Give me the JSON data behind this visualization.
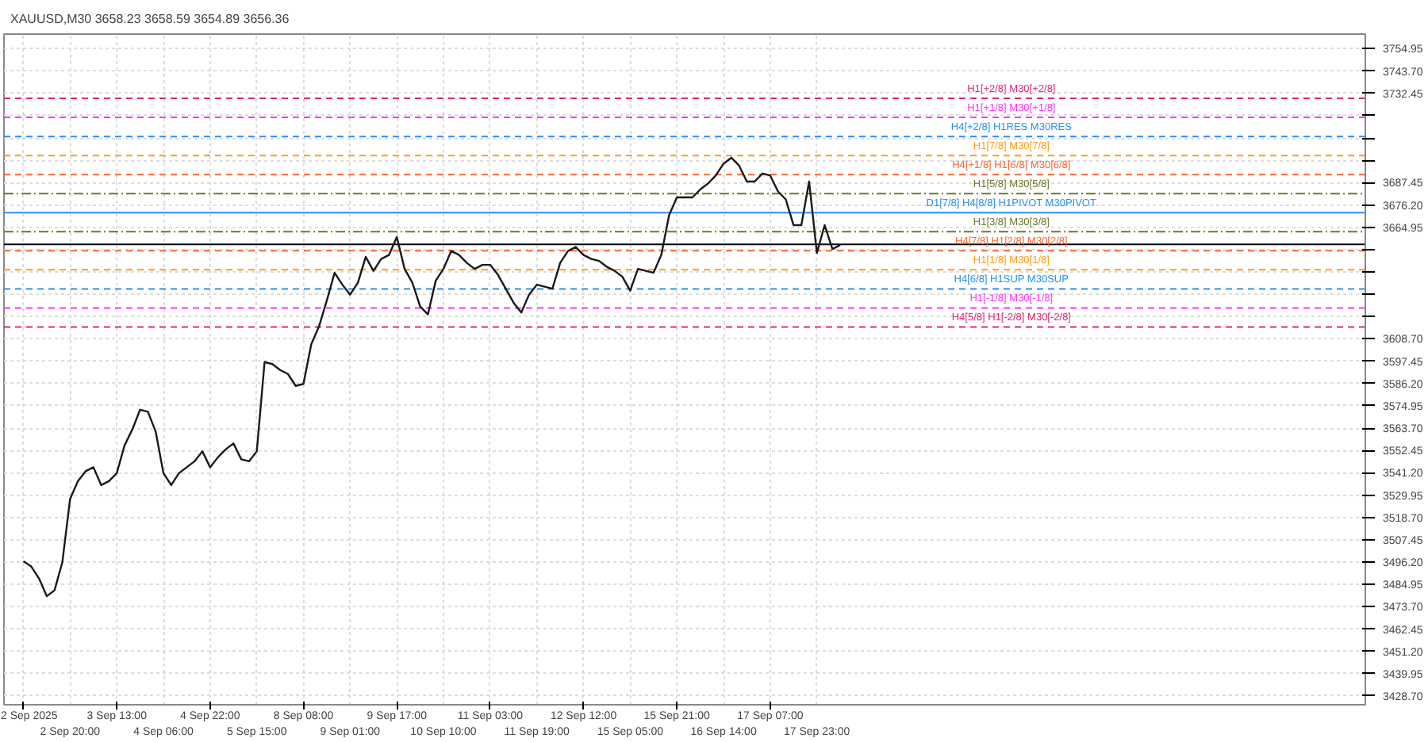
{
  "chart_data": {
    "type": "line",
    "title": "XAUUSD,M30  3658.23 3658.59 3654.89 3656.36",
    "categories": [
      "2 Sep 2025",
      null,
      null,
      null,
      null,
      null,
      "2 Sep 20:00",
      null,
      null,
      null,
      null,
      null,
      "3 Sep 13:00",
      null,
      null,
      null,
      null,
      null,
      "4 Sep 06:00",
      null,
      null,
      null,
      null,
      null,
      "4 Sep 22:00",
      null,
      null,
      null,
      null,
      null,
      "5 Sep 15:00",
      null,
      null,
      null,
      null,
      null,
      "8 Sep 08:00",
      null,
      null,
      null,
      null,
      null,
      "9 Sep 01:00",
      null,
      null,
      null,
      null,
      null,
      "9 Sep 17:00",
      null,
      null,
      null,
      null,
      null,
      "10 Sep 10:00",
      null,
      null,
      null,
      null,
      null,
      "11 Sep 03:00",
      null,
      null,
      null,
      null,
      null,
      "11 Sep 19:00",
      null,
      null,
      null,
      null,
      null,
      "12 Sep 12:00",
      null,
      null,
      null,
      null,
      null,
      "15 Sep 05:00",
      null,
      null,
      null,
      null,
      null,
      "15 Sep 21:00",
      null,
      null,
      null,
      null,
      null,
      "16 Sep 14:00",
      null,
      null,
      null,
      null,
      null,
      "17 Sep 07:00",
      null,
      null,
      null,
      null,
      null,
      "17 Sep 23:00",
      null,
      null,
      null,
      null,
      null,
      null,
      null,
      null,
      null,
      null,
      null,
      null,
      null,
      null,
      null,
      null,
      null,
      null,
      null,
      null,
      null,
      null,
      null,
      null,
      null,
      null,
      null,
      null,
      null,
      null,
      null,
      null,
      null,
      null,
      null,
      null,
      null,
      null,
      null,
      null,
      null,
      null,
      null,
      null,
      null,
      null,
      null,
      null,
      null,
      null,
      null,
      null,
      null,
      null,
      null,
      null,
      null,
      null,
      null,
      null,
      null,
      null,
      null,
      null,
      null,
      null,
      null,
      null,
      null,
      null
    ],
    "series": [
      {
        "color": "#1a1a1a",
        "values": [
          3496.6,
          3494,
          3488,
          3479,
          3482,
          3496,
          3528,
          3537,
          3542,
          3544,
          3535,
          3537,
          3541,
          3555,
          3563,
          3573,
          3572,
          3562,
          3541,
          3535,
          3541,
          3544,
          3547,
          3552,
          3544,
          3549,
          3553,
          3556,
          3548,
          3547,
          3552,
          3597,
          3596,
          3593,
          3591,
          3585,
          3586,
          3606,
          3615,
          3628,
          3642,
          3636,
          3631,
          3637,
          3650,
          3643,
          3649,
          3651,
          3660,
          3644,
          3637,
          3625,
          3621,
          3638,
          3644,
          3653,
          3651,
          3647,
          3644,
          3646,
          3646,
          3641,
          3634,
          3627,
          3622,
          3631,
          3636,
          3635,
          3634,
          3647,
          3653,
          3655,
          3651,
          3649,
          3648,
          3645,
          3643,
          3640,
          3633,
          3644,
          3643,
          3642,
          3651,
          3671,
          3680,
          3680,
          3680,
          3684,
          3687,
          3691,
          3697,
          3700,
          3696,
          3688,
          3688,
          3692,
          3691,
          3683,
          3679,
          3666,
          3666,
          3688,
          3652,
          3666,
          3654,
          3656,
          null,
          null,
          null,
          null,
          null,
          null,
          null,
          null,
          null,
          null,
          null,
          null,
          null,
          null,
          null,
          null,
          null,
          null,
          null,
          null,
          null,
          null,
          null,
          null,
          null,
          null,
          null,
          null,
          null,
          null,
          null,
          null,
          null,
          null,
          null,
          null,
          null,
          null,
          null,
          null,
          null,
          null,
          null,
          null,
          null,
          null,
          null,
          null,
          null,
          null,
          null,
          null,
          null,
          null,
          null,
          null,
          null,
          null,
          null,
          null,
          null,
          null,
          null,
          null,
          null,
          null,
          null
        ]
      }
    ],
    "ylim": [
      3424.3,
      3762.3
    ],
    "yticks": [
      {
        "value": 3428.7,
        "label": "3428.70"
      },
      3439.95,
      {
        "value": 3451.2,
        "label": "3451.20"
      },
      3462.45,
      {
        "value": 3473.7,
        "label": "3473.70"
      },
      3484.95,
      {
        "value": 3496.2,
        "label": "3496.20"
      },
      3507.45,
      {
        "value": 3518.7,
        "label": "3518.70"
      },
      3529.95,
      {
        "value": 3541.2,
        "label": "3541.20"
      },
      3552.45,
      {
        "value": 3563.7,
        "label": "3563.70"
      },
      3574.95,
      {
        "value": 3586.2,
        "label": "3586.20"
      },
      3597.45,
      {
        "value": 3608.7,
        "label": "3608.70"
      },
      {
        "value": 3619.95,
        "label": null
      },
      {
        "value": 3631.2,
        "label": null
      },
      {
        "value": 3642.45,
        "label": null
      },
      {
        "value": 3653.7,
        "label": null
      },
      3664.95,
      {
        "value": 3676.2,
        "label": "3676.20"
      },
      3687.45,
      {
        "value": 3698.7,
        "label": null
      },
      {
        "value": 3709.95,
        "label": null
      },
      {
        "value": 3721.2,
        "label": null
      },
      3732.45,
      {
        "value": 3743.7,
        "label": "3743.70"
      },
      3754.95
    ],
    "grid": true,
    "marker": "none",
    "line_style": "solid",
    "ref_lines": [
      {
        "axis": "y",
        "value": 3729.9,
        "label": "H1[+2/8] M30[+2/8]",
        "color": "#e0287a",
        "line_style": "dashed"
      },
      {
        "axis": "y",
        "value": 3720.3,
        "label": "H1[+1/8] M30[+1/8]",
        "color": "#ff33ff",
        "line_style": "dashed"
      },
      {
        "axis": "y",
        "value": 3710.7,
        "label": "H4[+2/8] H1RES M30RES",
        "color": "#2b8ff0",
        "line_style": "dashed"
      },
      {
        "axis": "y",
        "value": 3701.1,
        "label": "H1[7/8] M30[7/8]",
        "color": "#ff9d1a",
        "line_style": "dashed"
      },
      {
        "axis": "y",
        "value": 3691.5,
        "label": "H4[+1/8] H1[6/8] M30[6/8]",
        "color": "#ff6633",
        "line_style": "dashed"
      },
      {
        "axis": "y",
        "value": 3681.9,
        "label": "H1[5/8] M30[5/8]",
        "color": "#6b7a2a",
        "line_style": "dotted"
      },
      {
        "axis": "y",
        "value": 3672.3,
        "label": "D1[7/8] H4[8/8] H1PIVOT M30PIVOT",
        "color": "#2b8ff0",
        "line_style": "solid"
      },
      {
        "axis": "y",
        "value": 3662.7,
        "label": "H1[3/8] M30[3/8]",
        "color": "#6b7a2a",
        "line_style": "dotted"
      },
      {
        "axis": "y",
        "value": 3656.36,
        "label": null,
        "color": "#000000",
        "line_style": "solid"
      },
      {
        "axis": "y",
        "value": 3653.1,
        "label": "H4[7/8] H1[2/8] M30[2/8]",
        "color": "#ff6633",
        "line_style": "dashed"
      },
      {
        "axis": "y",
        "value": 3643.5,
        "label": "H1[1/8] M30[1/8]",
        "color": "#ff9d1a",
        "line_style": "dashed"
      },
      {
        "axis": "y",
        "value": 3633.9,
        "label": "H4[6/8] H1SUP M30SUP",
        "color": "#2b8ff0",
        "line_style": "dashed"
      },
      {
        "axis": "y",
        "value": 3624.3,
        "label": "H1[-1/8] M30[-1/8]",
        "color": "#ff33ff",
        "line_style": "dashed"
      },
      {
        "axis": "y",
        "value": 3614.7,
        "label": "H4[5/8] H1[-2/8] M30[-2/8]",
        "color": "#e0287a",
        "line_style": "dashed"
      }
    ]
  }
}
